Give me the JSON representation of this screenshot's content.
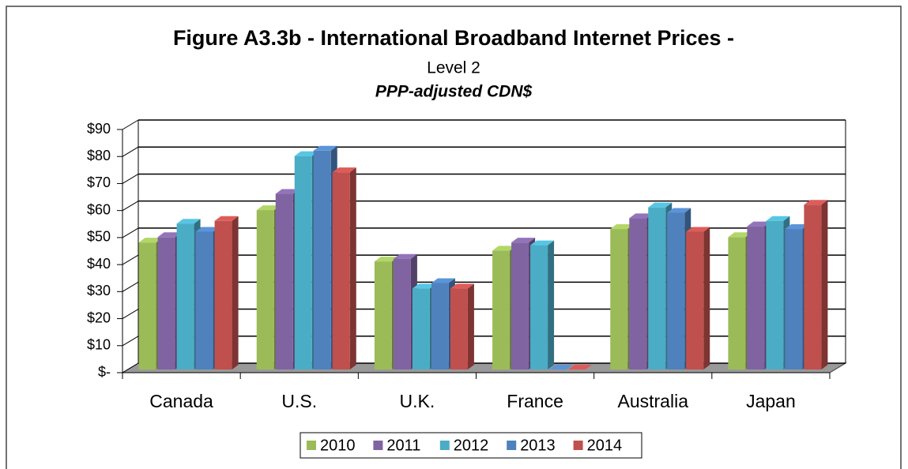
{
  "chart_data": {
    "type": "bar3d",
    "title": "Figure A3.3b - International Broadband Internet Prices -",
    "subtitle": "Level 2",
    "unit_label": "PPP-adjusted CDN$",
    "categories": [
      "Canada",
      "U.S.",
      "U.K.",
      "France",
      "Australia",
      "Japan"
    ],
    "series": [
      {
        "name": "2010",
        "color": "#9bbb59",
        "values": [
          47,
          59,
          40,
          44,
          52,
          49
        ]
      },
      {
        "name": "2011",
        "color": "#8064a2",
        "values": [
          49,
          65,
          41,
          47,
          56,
          53
        ]
      },
      {
        "name": "2012",
        "color": "#4bacc6",
        "values": [
          54,
          79,
          30,
          46,
          60,
          55
        ]
      },
      {
        "name": "2013",
        "color": "#4f81bd",
        "values": [
          51,
          81,
          32,
          0,
          58,
          52
        ]
      },
      {
        "name": "2014",
        "color": "#c0504d",
        "values": [
          55,
          73,
          30,
          0,
          51,
          61
        ]
      }
    ],
    "ylim": [
      0,
      90
    ],
    "yticks": [
      {
        "value": 0,
        "label": "$-"
      },
      {
        "value": 10,
        "label": "$10"
      },
      {
        "value": 20,
        "label": "$20"
      },
      {
        "value": 30,
        "label": "$30"
      },
      {
        "value": 40,
        "label": "$40"
      },
      {
        "value": 50,
        "label": "$50"
      },
      {
        "value": 60,
        "label": "$60"
      },
      {
        "value": 70,
        "label": "$70"
      },
      {
        "value": 80,
        "label": "$80"
      },
      {
        "value": 90,
        "label": "$90"
      }
    ],
    "grid": true,
    "legend": "bottom"
  }
}
